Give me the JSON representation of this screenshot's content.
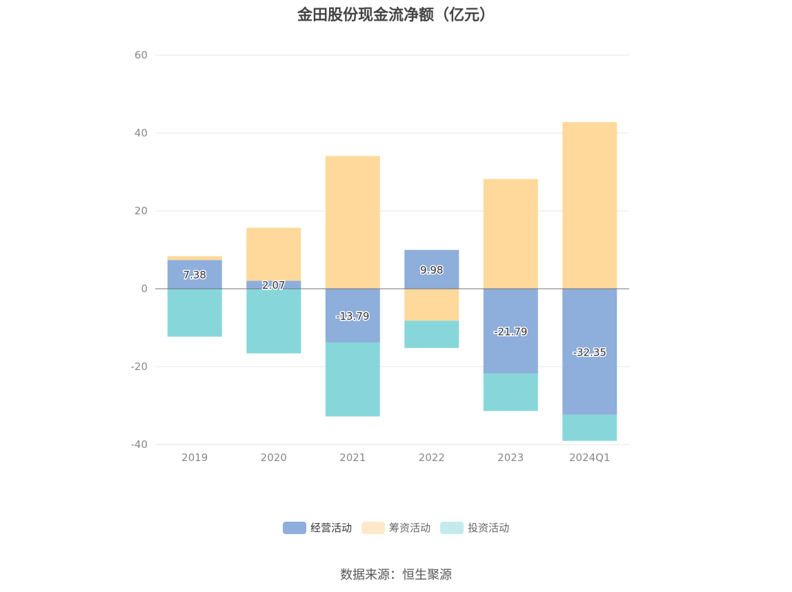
{
  "chart_data": {
    "type": "bar",
    "stacked": true,
    "title": "金田股份现金流净额（亿元）",
    "categories": [
      "2019",
      "2020",
      "2021",
      "2022",
      "2023",
      "2024Q1"
    ],
    "ylim": [
      -40,
      60
    ],
    "yticks": [
      60,
      40,
      20,
      0,
      -20,
      -40
    ],
    "grid": true,
    "legend_position": "bottom",
    "series": [
      {
        "name": "经营活动",
        "color": "#8eaedb",
        "values": [
          7.38,
          2.07,
          -13.79,
          9.98,
          -21.79,
          -32.35
        ],
        "labels": [
          "7.38",
          "2.07",
          "-13.79",
          "9.98",
          "-21.79",
          "-32.35"
        ]
      },
      {
        "name": "筹资活动",
        "color": "#ffd99b",
        "values": [
          1.0,
          13.6,
          34.1,
          -8.2,
          28.2,
          42.8
        ]
      },
      {
        "name": "投资活动",
        "color": "#87d7da",
        "values": [
          -12.3,
          -16.6,
          -19.0,
          -7.0,
          -9.6,
          -6.7
        ]
      }
    ]
  },
  "legend": [
    {
      "label": "经营活动",
      "color": "#8eaedb"
    },
    {
      "label": "筹资活动",
      "color": "#ffe9c8"
    },
    {
      "label": "投资活动",
      "color": "#c3ebec"
    }
  ],
  "source": "数据来源：恒生聚源"
}
